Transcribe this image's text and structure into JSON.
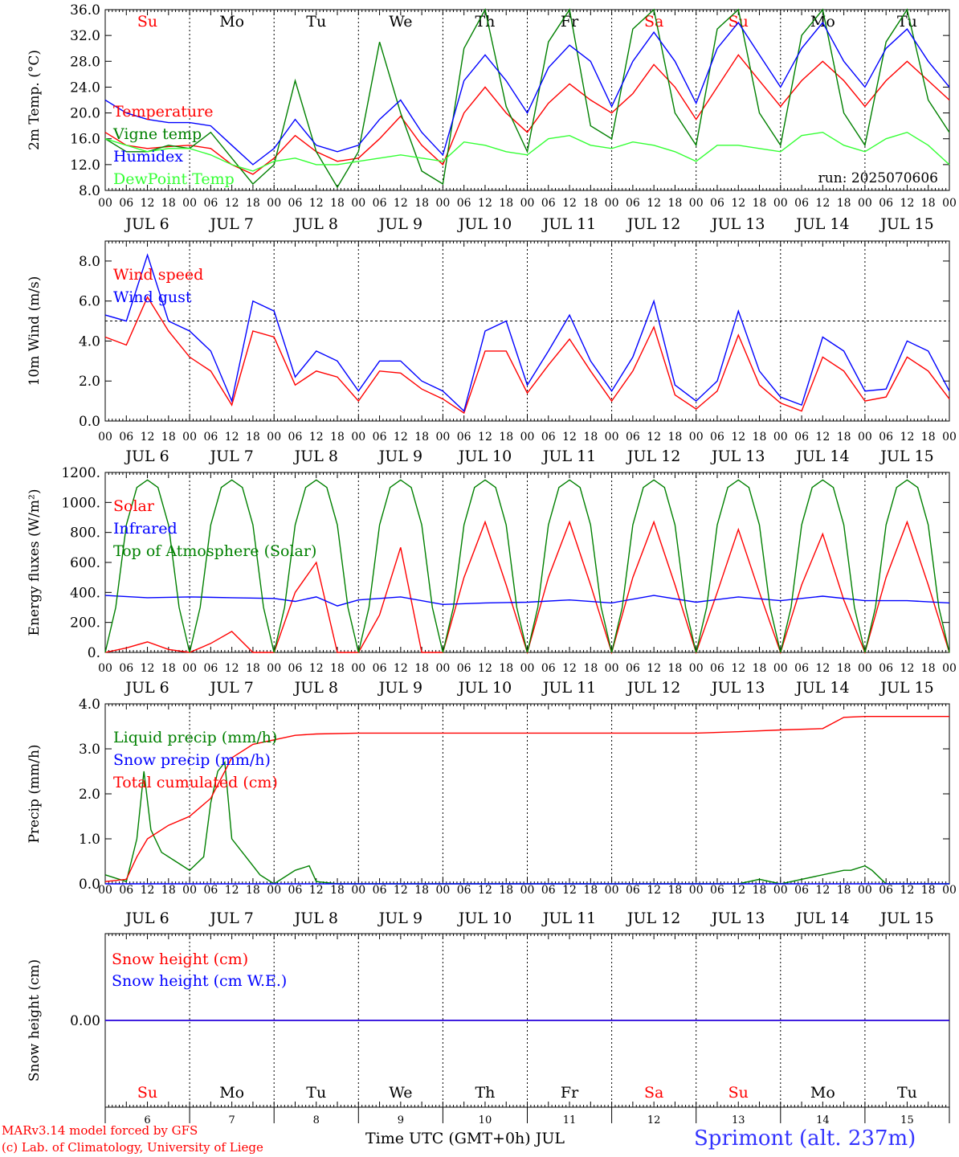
{
  "colors": {
    "red": "#ff0000",
    "dark_green": "#008000",
    "blue": "#0000ff",
    "light_green": "#33ff33",
    "station_blue": "#3333ff"
  },
  "day_labels": [
    "Su",
    "Mo",
    "Tu",
    "We",
    "Th",
    "Fr",
    "Sa",
    "Su",
    "Mo",
    "Tu"
  ],
  "weekend_days": [
    0,
    6,
    7
  ],
  "date_labels": [
    "JUL  6",
    "JUL  7",
    "JUL  8",
    "JUL  9",
    "JUL 10",
    "JUL 11",
    "JUL 12",
    "JUL 13",
    "JUL 14",
    "JUL 15"
  ],
  "day_numbers": [
    "6",
    "7",
    "8",
    "9",
    "10",
    "11",
    "12",
    "13",
    "14",
    "15"
  ],
  "hour_labels": [
    "00",
    "06",
    "12",
    "18"
  ],
  "final_hour_label": "00",
  "footer": {
    "model": "MARv3.14 model forced by GFS",
    "credit": "(c) Lab. of Climatology, University of Liege",
    "axis_title": "Time UTC (GMT+0h) JUL",
    "station": "Sprimont (alt. 237m)"
  },
  "chart_data": [
    {
      "type": "line",
      "ylabel": "2m Temp. (°C)",
      "ylim": [
        8,
        36
      ],
      "yticks": [
        "8.0",
        "12.0",
        "16.0",
        "20.0",
        "24.0",
        "28.0",
        "32.0",
        "36.0"
      ],
      "annotation": "run: 2025070606",
      "series": [
        {
          "name": "Temperature",
          "color": "#ff0000",
          "x": [
            0,
            6,
            12,
            18,
            24,
            30,
            36,
            42,
            48,
            54,
            60,
            66,
            72,
            78,
            84,
            90,
            96,
            102,
            108,
            114,
            120,
            126,
            132,
            138,
            144,
            150,
            156,
            162,
            168,
            174,
            180,
            186,
            192,
            198,
            204,
            210,
            216,
            222,
            228,
            234,
            240
          ],
          "values": [
            17,
            15,
            14.5,
            14.8,
            15,
            14.5,
            12,
            10.5,
            13,
            16.5,
            14,
            12.5,
            13,
            16,
            19.5,
            15,
            12,
            20,
            24,
            20,
            17,
            21.5,
            24.5,
            22,
            20,
            23,
            27.5,
            24,
            19,
            24,
            29,
            25,
            21,
            25,
            28,
            25,
            21,
            25,
            28,
            25,
            22
          ]
        },
        {
          "name": "Vigne temp",
          "color": "#008000",
          "x": [
            0,
            6,
            12,
            18,
            24,
            30,
            36,
            42,
            48,
            54,
            60,
            66,
            72,
            78,
            84,
            90,
            96,
            102,
            108,
            114,
            120,
            126,
            132,
            138,
            144,
            150,
            156,
            162,
            168,
            174,
            180,
            186,
            192,
            198,
            204,
            210,
            216,
            222,
            228,
            234,
            240
          ],
          "values": [
            16,
            14,
            14,
            15,
            14.5,
            17,
            13,
            9,
            12,
            25,
            14,
            8.5,
            14,
            31,
            20,
            11,
            9,
            30,
            37,
            21,
            14,
            31,
            37,
            18,
            16,
            33,
            37,
            20,
            15,
            33,
            37,
            20,
            15,
            32,
            37,
            20,
            15,
            31,
            37,
            22,
            17
          ]
        },
        {
          "name": "Humidex",
          "color": "#0000ff",
          "x": [
            0,
            6,
            12,
            18,
            24,
            30,
            36,
            42,
            48,
            54,
            60,
            66,
            72,
            78,
            84,
            90,
            96,
            102,
            108,
            114,
            120,
            126,
            132,
            138,
            144,
            150,
            156,
            162,
            168,
            174,
            180,
            186,
            192,
            198,
            204,
            210,
            216,
            222,
            228,
            234,
            240
          ],
          "values": [
            22,
            20,
            19,
            18.5,
            18.5,
            18,
            15,
            12,
            14.5,
            19,
            15,
            14,
            15,
            19,
            22,
            17,
            13.5,
            25,
            29,
            25,
            20,
            27,
            30.5,
            28,
            21,
            28,
            32.5,
            28,
            21.5,
            30,
            34,
            29,
            24,
            30,
            34,
            28,
            24,
            30,
            33,
            28,
            24
          ]
        },
        {
          "name": "DewPoint Temp",
          "color": "#33ff33",
          "x": [
            0,
            6,
            12,
            18,
            24,
            30,
            36,
            42,
            48,
            54,
            60,
            66,
            72,
            78,
            84,
            90,
            96,
            102,
            108,
            114,
            120,
            126,
            132,
            138,
            144,
            150,
            156,
            162,
            168,
            174,
            180,
            186,
            192,
            198,
            204,
            210,
            216,
            222,
            228,
            234,
            240
          ],
          "values": [
            16,
            15,
            14,
            14.5,
            14.5,
            13.5,
            12,
            11,
            12.5,
            13,
            12,
            12,
            12.5,
            13,
            13.5,
            13,
            12.5,
            15.5,
            15,
            14,
            13.5,
            16,
            16.5,
            15,
            14.5,
            15.5,
            15,
            14,
            12.5,
            15,
            15,
            14.5,
            14,
            16.5,
            17,
            15,
            14,
            16,
            17,
            15,
            12
          ]
        }
      ]
    },
    {
      "type": "line",
      "ylabel": "10m Wind (m/s)",
      "ylim": [
        0,
        9
      ],
      "yticks": [
        "0.0",
        "2.0",
        "4.0",
        "6.0",
        "8.0"
      ],
      "reference_line": 5.0,
      "series": [
        {
          "name": "Wind speed",
          "color": "#ff0000",
          "x": [
            0,
            6,
            12,
            18,
            24,
            30,
            36,
            42,
            48,
            54,
            60,
            66,
            72,
            78,
            84,
            90,
            96,
            102,
            108,
            114,
            120,
            126,
            132,
            138,
            144,
            150,
            156,
            162,
            168,
            174,
            180,
            186,
            192,
            198,
            204,
            210,
            216,
            222,
            228,
            234,
            240
          ],
          "values": [
            4.2,
            3.8,
            6.2,
            4.5,
            3.2,
            2.5,
            0.8,
            4.5,
            4.2,
            1.8,
            2.5,
            2.2,
            1.0,
            2.5,
            2.4,
            1.6,
            1.1,
            0.4,
            3.5,
            3.5,
            1.4,
            2.8,
            4.1,
            2.5,
            1.0,
            2.5,
            4.7,
            1.3,
            0.6,
            1.5,
            4.3,
            1.8,
            0.9,
            0.5,
            3.2,
            2.5,
            1.0,
            1.2,
            3.2,
            2.5,
            1.1
          ]
        },
        {
          "name": "Wind gust",
          "color": "#0000ff",
          "x": [
            0,
            6,
            12,
            18,
            24,
            30,
            36,
            42,
            48,
            54,
            60,
            66,
            72,
            78,
            84,
            90,
            96,
            102,
            108,
            114,
            120,
            126,
            132,
            138,
            144,
            150,
            156,
            162,
            168,
            174,
            180,
            186,
            192,
            198,
            204,
            210,
            216,
            222,
            228,
            234,
            240
          ],
          "values": [
            5.3,
            5.0,
            8.3,
            5.0,
            4.5,
            3.5,
            1.0,
            6.0,
            5.5,
            2.2,
            3.5,
            3.0,
            1.5,
            3.0,
            3.0,
            2.0,
            1.5,
            0.5,
            4.5,
            5.0,
            1.8,
            3.5,
            5.3,
            3.0,
            1.5,
            3.2,
            6.0,
            1.8,
            1.0,
            2.0,
            5.5,
            2.5,
            1.2,
            0.8,
            4.2,
            3.5,
            1.5,
            1.6,
            4.0,
            3.5,
            1.5
          ]
        }
      ]
    },
    {
      "type": "line",
      "ylabel": "Energy fluxes (W/m²)",
      "ylim": [
        0,
        1200
      ],
      "yticks": [
        "0.",
        "200.",
        "400.",
        "600.",
        "800.",
        "1000.",
        "1200."
      ],
      "series": [
        {
          "name": "Solar",
          "color": "#ff0000",
          "x": [
            0,
            6,
            12,
            18,
            24,
            30,
            36,
            42,
            48,
            54,
            60,
            66,
            72,
            78,
            84,
            90,
            96,
            102,
            108,
            114,
            120,
            126,
            132,
            138,
            144,
            150,
            156,
            162,
            168,
            174,
            180,
            186,
            192,
            198,
            204,
            210,
            216,
            222,
            228,
            234,
            240
          ],
          "values": [
            0,
            30,
            70,
            20,
            0,
            60,
            140,
            0,
            0,
            400,
            600,
            0,
            0,
            250,
            700,
            0,
            0,
            500,
            870,
            450,
            0,
            500,
            870,
            450,
            0,
            500,
            870,
            450,
            0,
            400,
            820,
            400,
            0,
            450,
            790,
            350,
            0,
            500,
            870,
            450,
            0
          ]
        },
        {
          "name": "Infrared",
          "color": "#0000ff",
          "x": [
            0,
            12,
            24,
            36,
            48,
            54,
            60,
            66,
            72,
            84,
            96,
            108,
            120,
            132,
            144,
            156,
            168,
            180,
            192,
            204,
            216,
            228,
            240
          ],
          "values": [
            380,
            365,
            370,
            365,
            360,
            340,
            370,
            310,
            350,
            370,
            320,
            330,
            335,
            350,
            330,
            380,
            335,
            370,
            345,
            375,
            345,
            345,
            330
          ]
        },
        {
          "name": "Top of Atmosphere (Solar)",
          "color": "#008000",
          "x": [
            0,
            3,
            6,
            9,
            12,
            15,
            18,
            21,
            24
          ],
          "values": [
            0,
            300,
            850,
            1100,
            1150,
            1100,
            850,
            300,
            0
          ],
          "repeat_daily": true
        }
      ]
    },
    {
      "type": "line",
      "ylabel": "Precip (mm/h)",
      "ylim": [
        0,
        4
      ],
      "yticks": [
        "0.0",
        "1.0",
        "2.0",
        "3.0",
        "4.0"
      ],
      "series": [
        {
          "name": "Liquid precip (mm/h)",
          "color": "#008000",
          "x": [
            0,
            6,
            9,
            11,
            13,
            16,
            20,
            24,
            28,
            30,
            32,
            34,
            36,
            40,
            44,
            48,
            54,
            58,
            60,
            66,
            72,
            96,
            180,
            186,
            192,
            210,
            212,
            216,
            218,
            222,
            240
          ],
          "values": [
            0.2,
            0.05,
            1.0,
            2.5,
            1.2,
            0.7,
            0.5,
            0.3,
            0.6,
            1.8,
            2.5,
            2.7,
            1.0,
            0.6,
            0.2,
            0.0,
            0.3,
            0.4,
            0.05,
            0.0,
            0.0,
            0.0,
            0.0,
            0.1,
            0.0,
            0.3,
            0.3,
            0.4,
            0.3,
            0.0,
            0.0
          ]
        },
        {
          "name": "Snow precip (mm/h)",
          "color": "#0000ff",
          "x": [
            0,
            240
          ],
          "values": [
            0.0,
            0.0
          ]
        },
        {
          "name": "Total cumulated (cm)",
          "color": "#ff0000",
          "x": [
            0,
            6,
            9,
            12,
            18,
            24,
            30,
            36,
            42,
            48,
            54,
            60,
            72,
            96,
            120,
            144,
            168,
            180,
            192,
            204,
            210,
            216,
            240
          ],
          "values": [
            0.05,
            0.1,
            0.6,
            1.0,
            1.3,
            1.5,
            1.9,
            2.8,
            3.1,
            3.2,
            3.3,
            3.33,
            3.35,
            3.35,
            3.35,
            3.35,
            3.35,
            3.38,
            3.42,
            3.45,
            3.7,
            3.72,
            3.72
          ]
        }
      ]
    },
    {
      "type": "line",
      "ylabel": "Snow height (cm)",
      "ylim": [
        -1,
        1
      ],
      "yticks": [
        "0.00"
      ],
      "series": [
        {
          "name": "Snow height (cm)",
          "color": "#ff0000",
          "x": [
            0,
            240
          ],
          "values": [
            0,
            0
          ]
        },
        {
          "name": "Snow height (cm W.E.)",
          "color": "#0000ff",
          "x": [
            0,
            240
          ],
          "values": [
            0,
            0
          ]
        }
      ]
    }
  ]
}
